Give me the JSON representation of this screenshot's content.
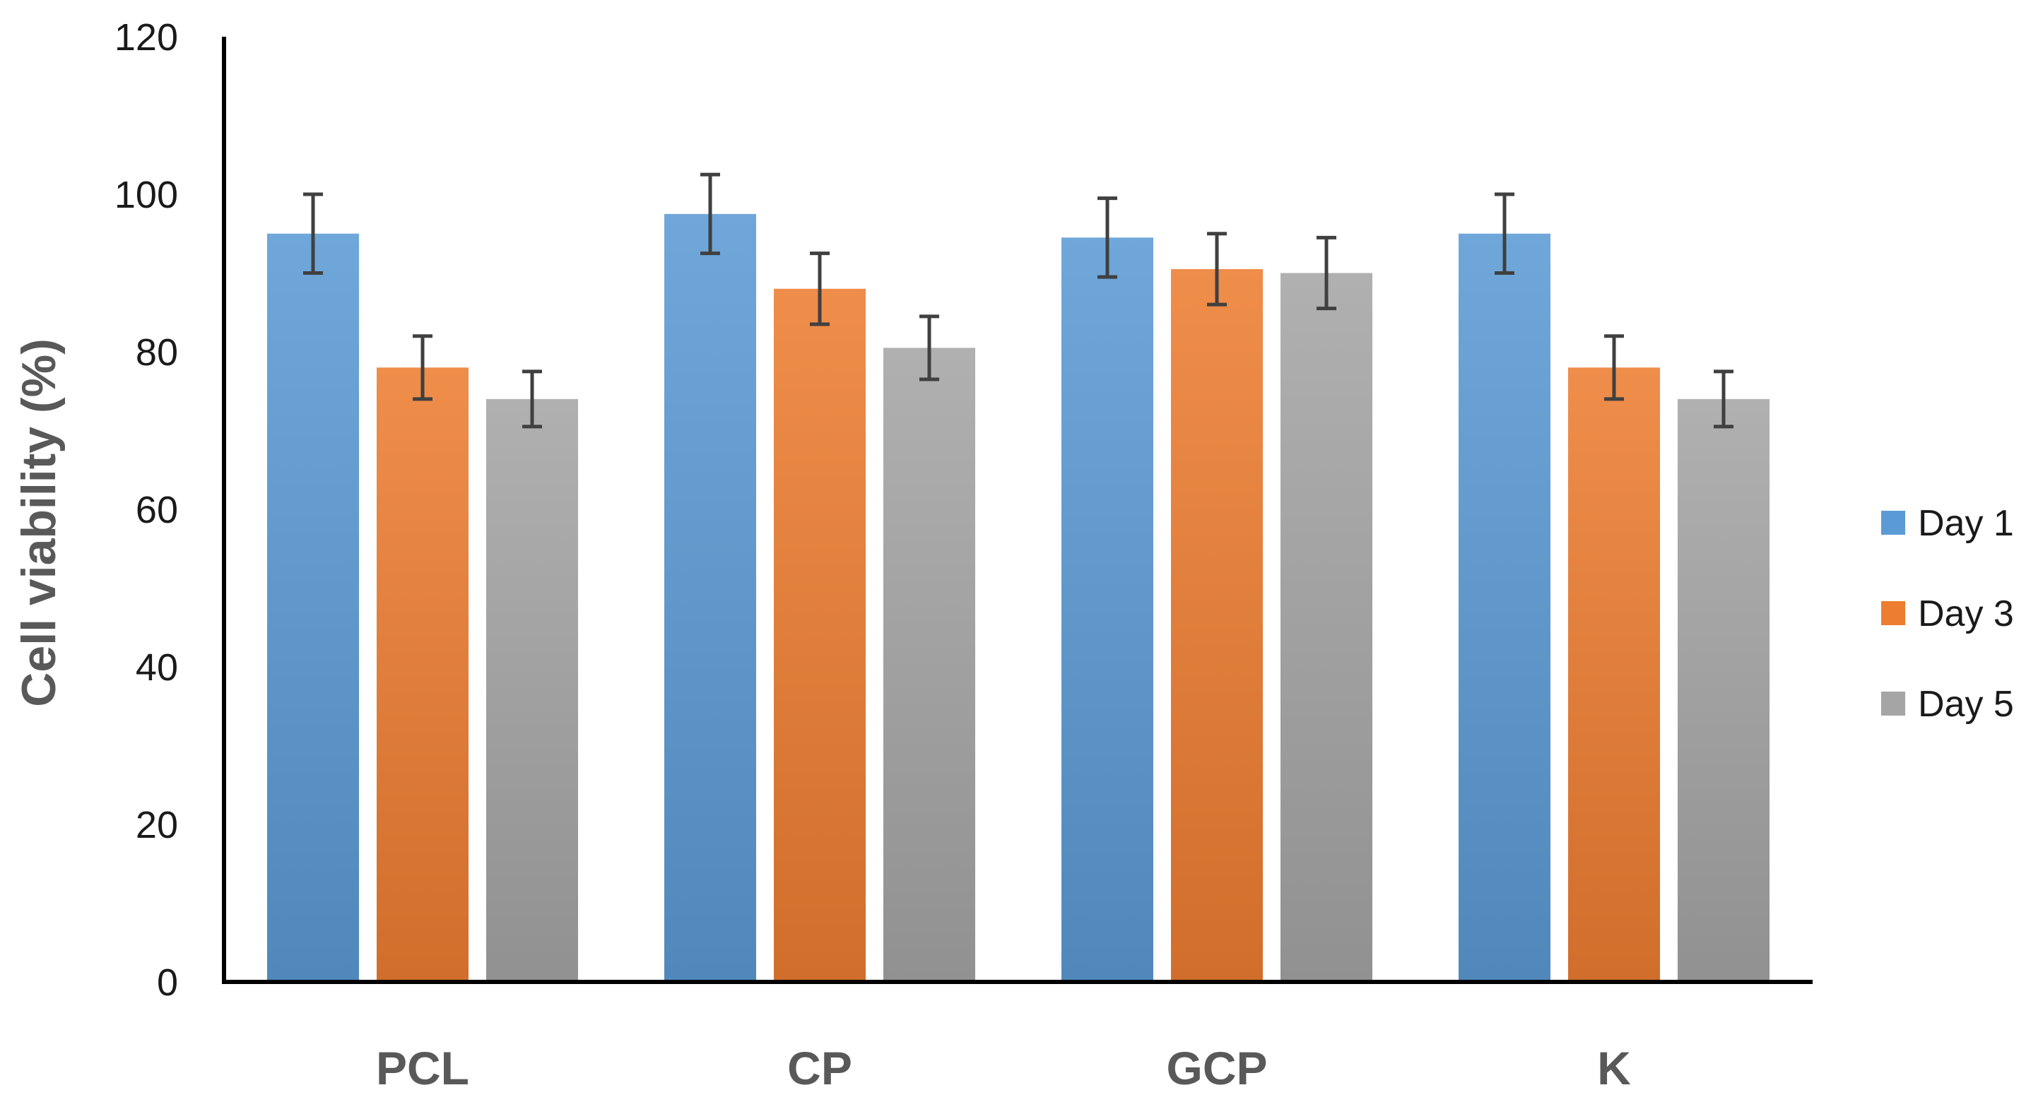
{
  "chart_data": {
    "type": "bar",
    "categories": [
      "PCL",
      "CP",
      "GCP",
      "K"
    ],
    "series": [
      {
        "name": "Day 1",
        "color": "#5b9bd5",
        "values": [
          95,
          97.5,
          94.5,
          95
        ],
        "errors": [
          5,
          5,
          5,
          5
        ]
      },
      {
        "name": "Day 3",
        "color": "#ed7d31",
        "values": [
          78,
          88,
          90.5,
          78
        ],
        "errors": [
          4,
          4.5,
          4.5,
          4
        ]
      },
      {
        "name": "Day 5",
        "color": "#a5a5a5",
        "values": [
          74,
          80.5,
          90,
          74
        ],
        "errors": [
          3.5,
          4,
          4.5,
          3.5
        ]
      }
    ],
    "title": "",
    "xlabel": "",
    "ylabel": "Cell viability (%)",
    "ylim": [
      0,
      120
    ],
    "yticks": [
      0,
      20,
      40,
      60,
      80,
      100,
      120
    ],
    "grid": false,
    "legend_position": "right",
    "error_bars": true
  }
}
